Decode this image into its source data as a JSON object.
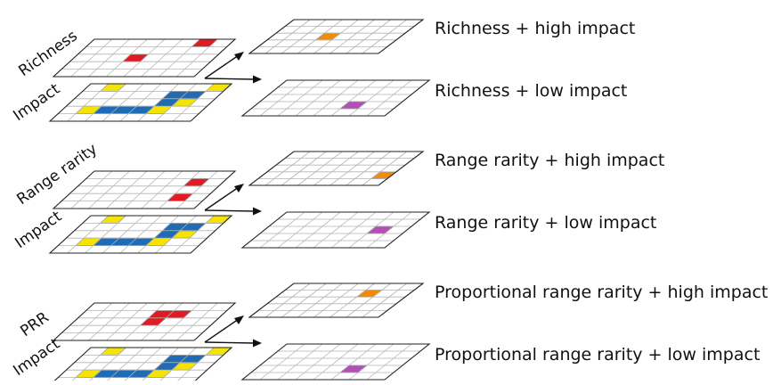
{
  "colors": {
    "red": "#e01b24",
    "blue": "#1f6bb5",
    "yellow": "#f5e400",
    "orange": "#f08c0a",
    "purple": "#b44fb8",
    "grid": "#b5b5b5",
    "outline": "#222222"
  },
  "groups": [
    {
      "metric_label": "Richness",
      "impact_label": "Impact",
      "outputs": [
        "Richness + high impact",
        "Richness + low impact"
      ],
      "metric_cells": [
        [
          3,
          2
        ],
        [
          6,
          4
        ]
      ],
      "impact_cells": {
        "yellow": [
          [
            1,
            4
          ],
          [
            6,
            2
          ],
          [
            7,
            4
          ],
          [
            1,
            1
          ],
          [
            5,
            1
          ]
        ],
        "blue": [
          [
            4,
            1
          ],
          [
            5,
            2
          ],
          [
            5,
            3
          ],
          [
            6,
            3
          ],
          [
            2,
            1
          ],
          [
            3,
            1
          ]
        ]
      },
      "high_cell": [
        3,
        2
      ],
      "low_cell": [
        5,
        1
      ]
    },
    {
      "metric_label": "Range rarity",
      "impact_label": "Impact",
      "outputs": [
        "Range rarity + high impact",
        "Range rarity + low impact"
      ],
      "metric_cells": [
        [
          6,
          1
        ],
        [
          6,
          3
        ]
      ],
      "impact_cells": {
        "yellow": [
          [
            1,
            4
          ],
          [
            6,
            2
          ],
          [
            7,
            4
          ],
          [
            1,
            1
          ],
          [
            5,
            1
          ]
        ],
        "blue": [
          [
            4,
            1
          ],
          [
            5,
            2
          ],
          [
            5,
            3
          ],
          [
            6,
            3
          ],
          [
            2,
            1
          ],
          [
            3,
            1
          ]
        ]
      },
      "high_cell": [
        7,
        1
      ],
      "low_cell": [
        6,
        2
      ]
    },
    {
      "metric_label": "PRR",
      "impact_label": "Impact",
      "outputs": [
        "Proportional range rarity + high impact",
        "Proportional range rarity + low impact"
      ],
      "metric_cells": [
        [
          4,
          2
        ],
        [
          4,
          3
        ],
        [
          5,
          3
        ]
      ],
      "impact_cells": {
        "yellow": [
          [
            1,
            4
          ],
          [
            6,
            2
          ],
          [
            7,
            4
          ],
          [
            1,
            1
          ],
          [
            5,
            1
          ]
        ],
        "blue": [
          [
            4,
            1
          ],
          [
            5,
            2
          ],
          [
            5,
            3
          ],
          [
            6,
            3
          ],
          [
            2,
            1
          ],
          [
            3,
            1
          ]
        ]
      },
      "high_cell": [
        5,
        3
      ],
      "low_cell": [
        5,
        1
      ]
    }
  ]
}
